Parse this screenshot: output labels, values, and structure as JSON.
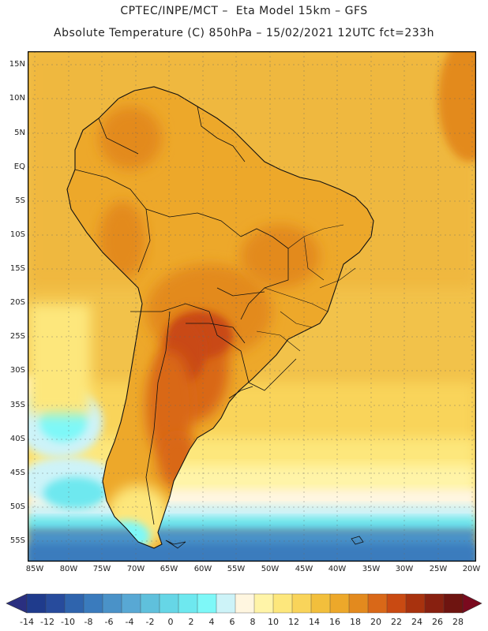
{
  "header": {
    "line1": "CPTEC/INPE/MCT –  Eta Model 15km – GFS",
    "line2": "Absolute Temperature (C) 850hPa – 15/02/2021 12UTC fct=233h"
  },
  "map": {
    "lat_labels": [
      "15N",
      "10N",
      "5N",
      "EQ",
      "5S",
      "10S",
      "15S",
      "20S",
      "25S",
      "30S",
      "35S",
      "40S",
      "45S",
      "50S",
      "55S"
    ],
    "lon_labels": [
      "85W",
      "80W",
      "75W",
      "70W",
      "65W",
      "60W",
      "55W",
      "50W",
      "45W",
      "40W",
      "35W",
      "30W",
      "25W",
      "20W"
    ]
  },
  "colorbar": {
    "labels": [
      "-14",
      "-12",
      "-10",
      "-8",
      "-6",
      "-4",
      "-2",
      "0",
      "2",
      "4",
      "6",
      "8",
      "10",
      "12",
      "14",
      "16",
      "18",
      "20",
      "22",
      "24",
      "26",
      "28"
    ],
    "colors": [
      "#1f3b8c",
      "#274b9c",
      "#2f64ad",
      "#3a7bbd",
      "#4a92c8",
      "#58a8d4",
      "#5fc0dc",
      "#66d6e6",
      "#6ee8ef",
      "#7ef8f8",
      "#cdf3f8",
      "#fff6e0",
      "#fff4a8",
      "#fde77c",
      "#f9d45a",
      "#f2bf3c",
      "#eda82a",
      "#e38a1e",
      "#d96818",
      "#c94a12",
      "#a8320e",
      "#882010",
      "#6e1410"
    ],
    "left_arrow_color": "#2a2f80",
    "right_arrow_color": "#7a0a1e"
  }
}
